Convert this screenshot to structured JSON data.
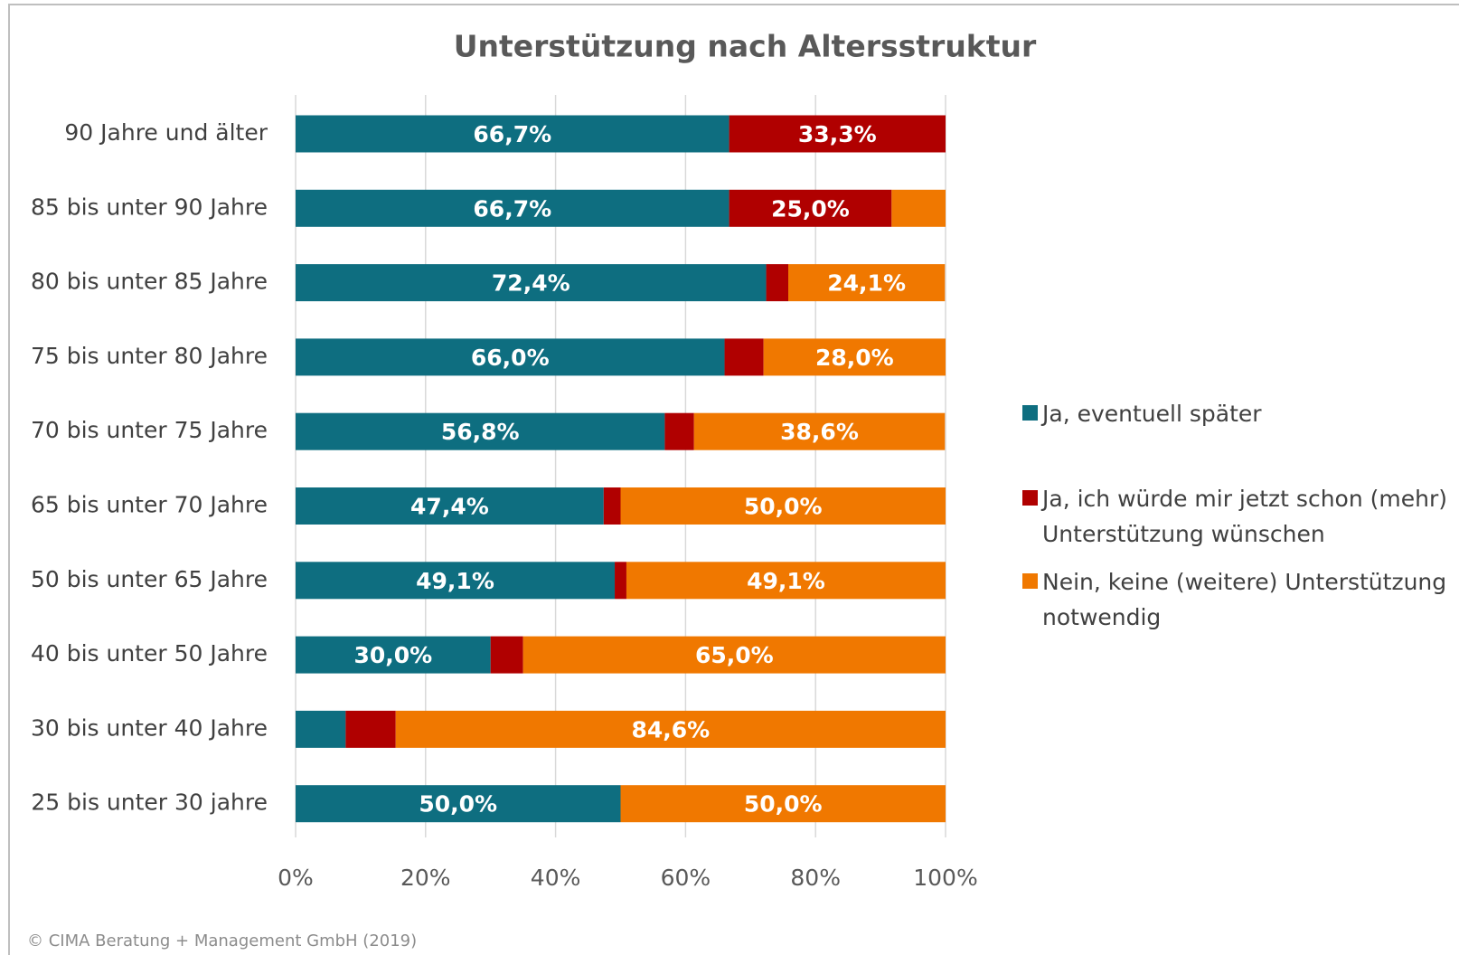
{
  "chart_data": {
    "type": "stacked_barh",
    "title": "Unterstützung nach Altersstruktur",
    "footer": "© CIMA Beratung + Management GmbH (2019)",
    "categories": [
      "90 Jahre und älter",
      "85 bis unter 90 Jahre",
      "80 bis unter 85 Jahre",
      "75 bis unter 80 Jahre",
      "70 bis unter 75 Jahre",
      "65 bis unter 70 Jahre",
      "50 bis unter 65 Jahre",
      "40 bis unter 50 Jahre",
      "30 bis unter 40 Jahre",
      "25 bis unter 30 jahre"
    ],
    "series": [
      {
        "name": "Ja, eventuell später",
        "color": "#0e6e80",
        "values": [
          66.7,
          66.7,
          72.4,
          66.0,
          56.8,
          47.4,
          49.1,
          30.0,
          7.7,
          50.0
        ],
        "value_labels": [
          "66,7%",
          "66,7%",
          "72,4%",
          "66,0%",
          "56,8%",
          "47,4%",
          "49,1%",
          "30,0%",
          null,
          "50,0%"
        ]
      },
      {
        "name": "Ja, ich würde mir jetzt schon (mehr) Unterstützung wünschen",
        "color": "#b00000",
        "values": [
          33.3,
          25.0,
          3.4,
          6.0,
          4.5,
          2.6,
          1.8,
          5.0,
          7.7,
          0
        ],
        "value_labels": [
          "33,3%",
          "25,0%",
          null,
          null,
          null,
          null,
          null,
          null,
          null,
          null
        ]
      },
      {
        "name": "Nein, keine (weitere) Unterstützung notwendig",
        "color": "#f07800",
        "values": [
          0,
          8.3,
          24.1,
          28.0,
          38.6,
          50.0,
          49.1,
          65.0,
          84.6,
          50.0
        ],
        "value_labels": [
          null,
          null,
          "24,1%",
          "28,0%",
          "38,6%",
          "50,0%",
          "49,1%",
          "65,0%",
          "84,6%",
          "50,0%"
        ]
      }
    ],
    "xlim": [
      0,
      100
    ],
    "xticks": [
      {
        "value": 0,
        "label": "0%"
      },
      {
        "value": 20,
        "label": "20%"
      },
      {
        "value": 40,
        "label": "40%"
      },
      {
        "value": 60,
        "label": "60%"
      },
      {
        "value": 80,
        "label": "80%"
      },
      {
        "value": 100,
        "label": "100%"
      }
    ],
    "grid": true,
    "legend": "right"
  }
}
